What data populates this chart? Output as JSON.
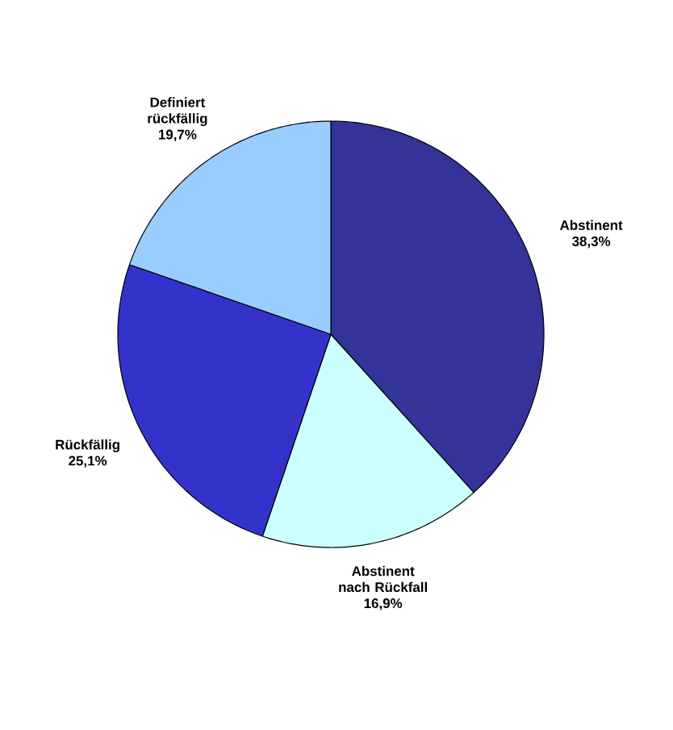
{
  "chart_data": {
    "type": "pie",
    "categories": [
      "Abstinent",
      "Abstinent nach Rückfall",
      "Rückfällig",
      "Definiert rückfällig"
    ],
    "values": [
      38.3,
      16.9,
      25.1,
      19.7
    ],
    "value_labels": [
      "38,3%",
      "16,9%",
      "25,1%",
      "19,7%"
    ],
    "colors": [
      "#333399",
      "#ccffff",
      "#3333cc",
      "#99ccff"
    ]
  }
}
